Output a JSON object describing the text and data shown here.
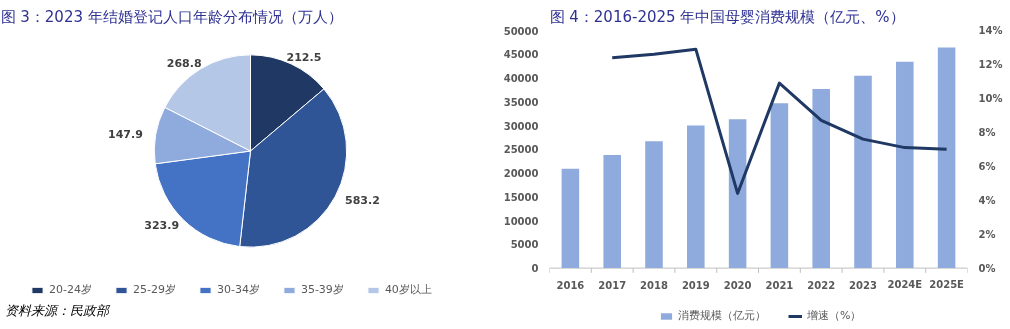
{
  "chart_data": [
    {
      "type": "pie",
      "title": "图 3：2023 年结婚登记人口年龄分布情况（万人）",
      "categories": [
        "20-24岁",
        "25-29岁",
        "30-34岁",
        "35-39岁",
        "40岁以上"
      ],
      "values": [
        212.5,
        583.2,
        323.9,
        147.9,
        268.8
      ],
      "colors": [
        "#203864",
        "#2f5597",
        "#4472c4",
        "#8faadc",
        "#b4c7e7"
      ],
      "data_labels": true,
      "legend": "bottom",
      "annotations": [
        "资料来源：民政部"
      ]
    },
    {
      "type": "bar",
      "title": "图 4：2016-2025 年中国母婴消费规模（亿元、%）",
      "categories": [
        "2016",
        "2017",
        "2018",
        "2019",
        "2020",
        "2021",
        "2022",
        "2023",
        "2024E",
        "2025E"
      ],
      "series": [
        {
          "name": "消费规模（亿元）",
          "type": "bar",
          "color": "#8faadc",
          "values": [
            20900,
            23800,
            26700,
            30000,
            31300,
            34700,
            37700,
            40500,
            43400,
            46400
          ]
        },
        {
          "name": "增速（%）",
          "type": "line",
          "axis": "y2",
          "color": "#1f3864",
          "values": [
            null,
            12.4,
            12.6,
            12.9,
            4.4,
            10.9,
            8.7,
            7.6,
            7.1,
            7.0
          ]
        }
      ],
      "ylim": [
        0,
        50000
      ],
      "yticks": [
        0,
        5000,
        10000,
        15000,
        20000,
        25000,
        30000,
        35000,
        40000,
        45000,
        50000
      ],
      "y2lim": [
        0,
        14
      ],
      "y2ticks": [
        {
          "value": 0,
          "label": "0%"
        },
        {
          "value": 2,
          "label": "2%"
        },
        {
          "value": 4,
          "label": "4%"
        },
        {
          "value": 6,
          "label": "6%"
        },
        {
          "value": 8,
          "label": "8%"
        },
        {
          "value": 10,
          "label": "10%"
        },
        {
          "value": 12,
          "label": "12%"
        },
        {
          "value": 14,
          "label": "14%"
        }
      ],
      "grid": false,
      "legend": "bottom"
    }
  ]
}
